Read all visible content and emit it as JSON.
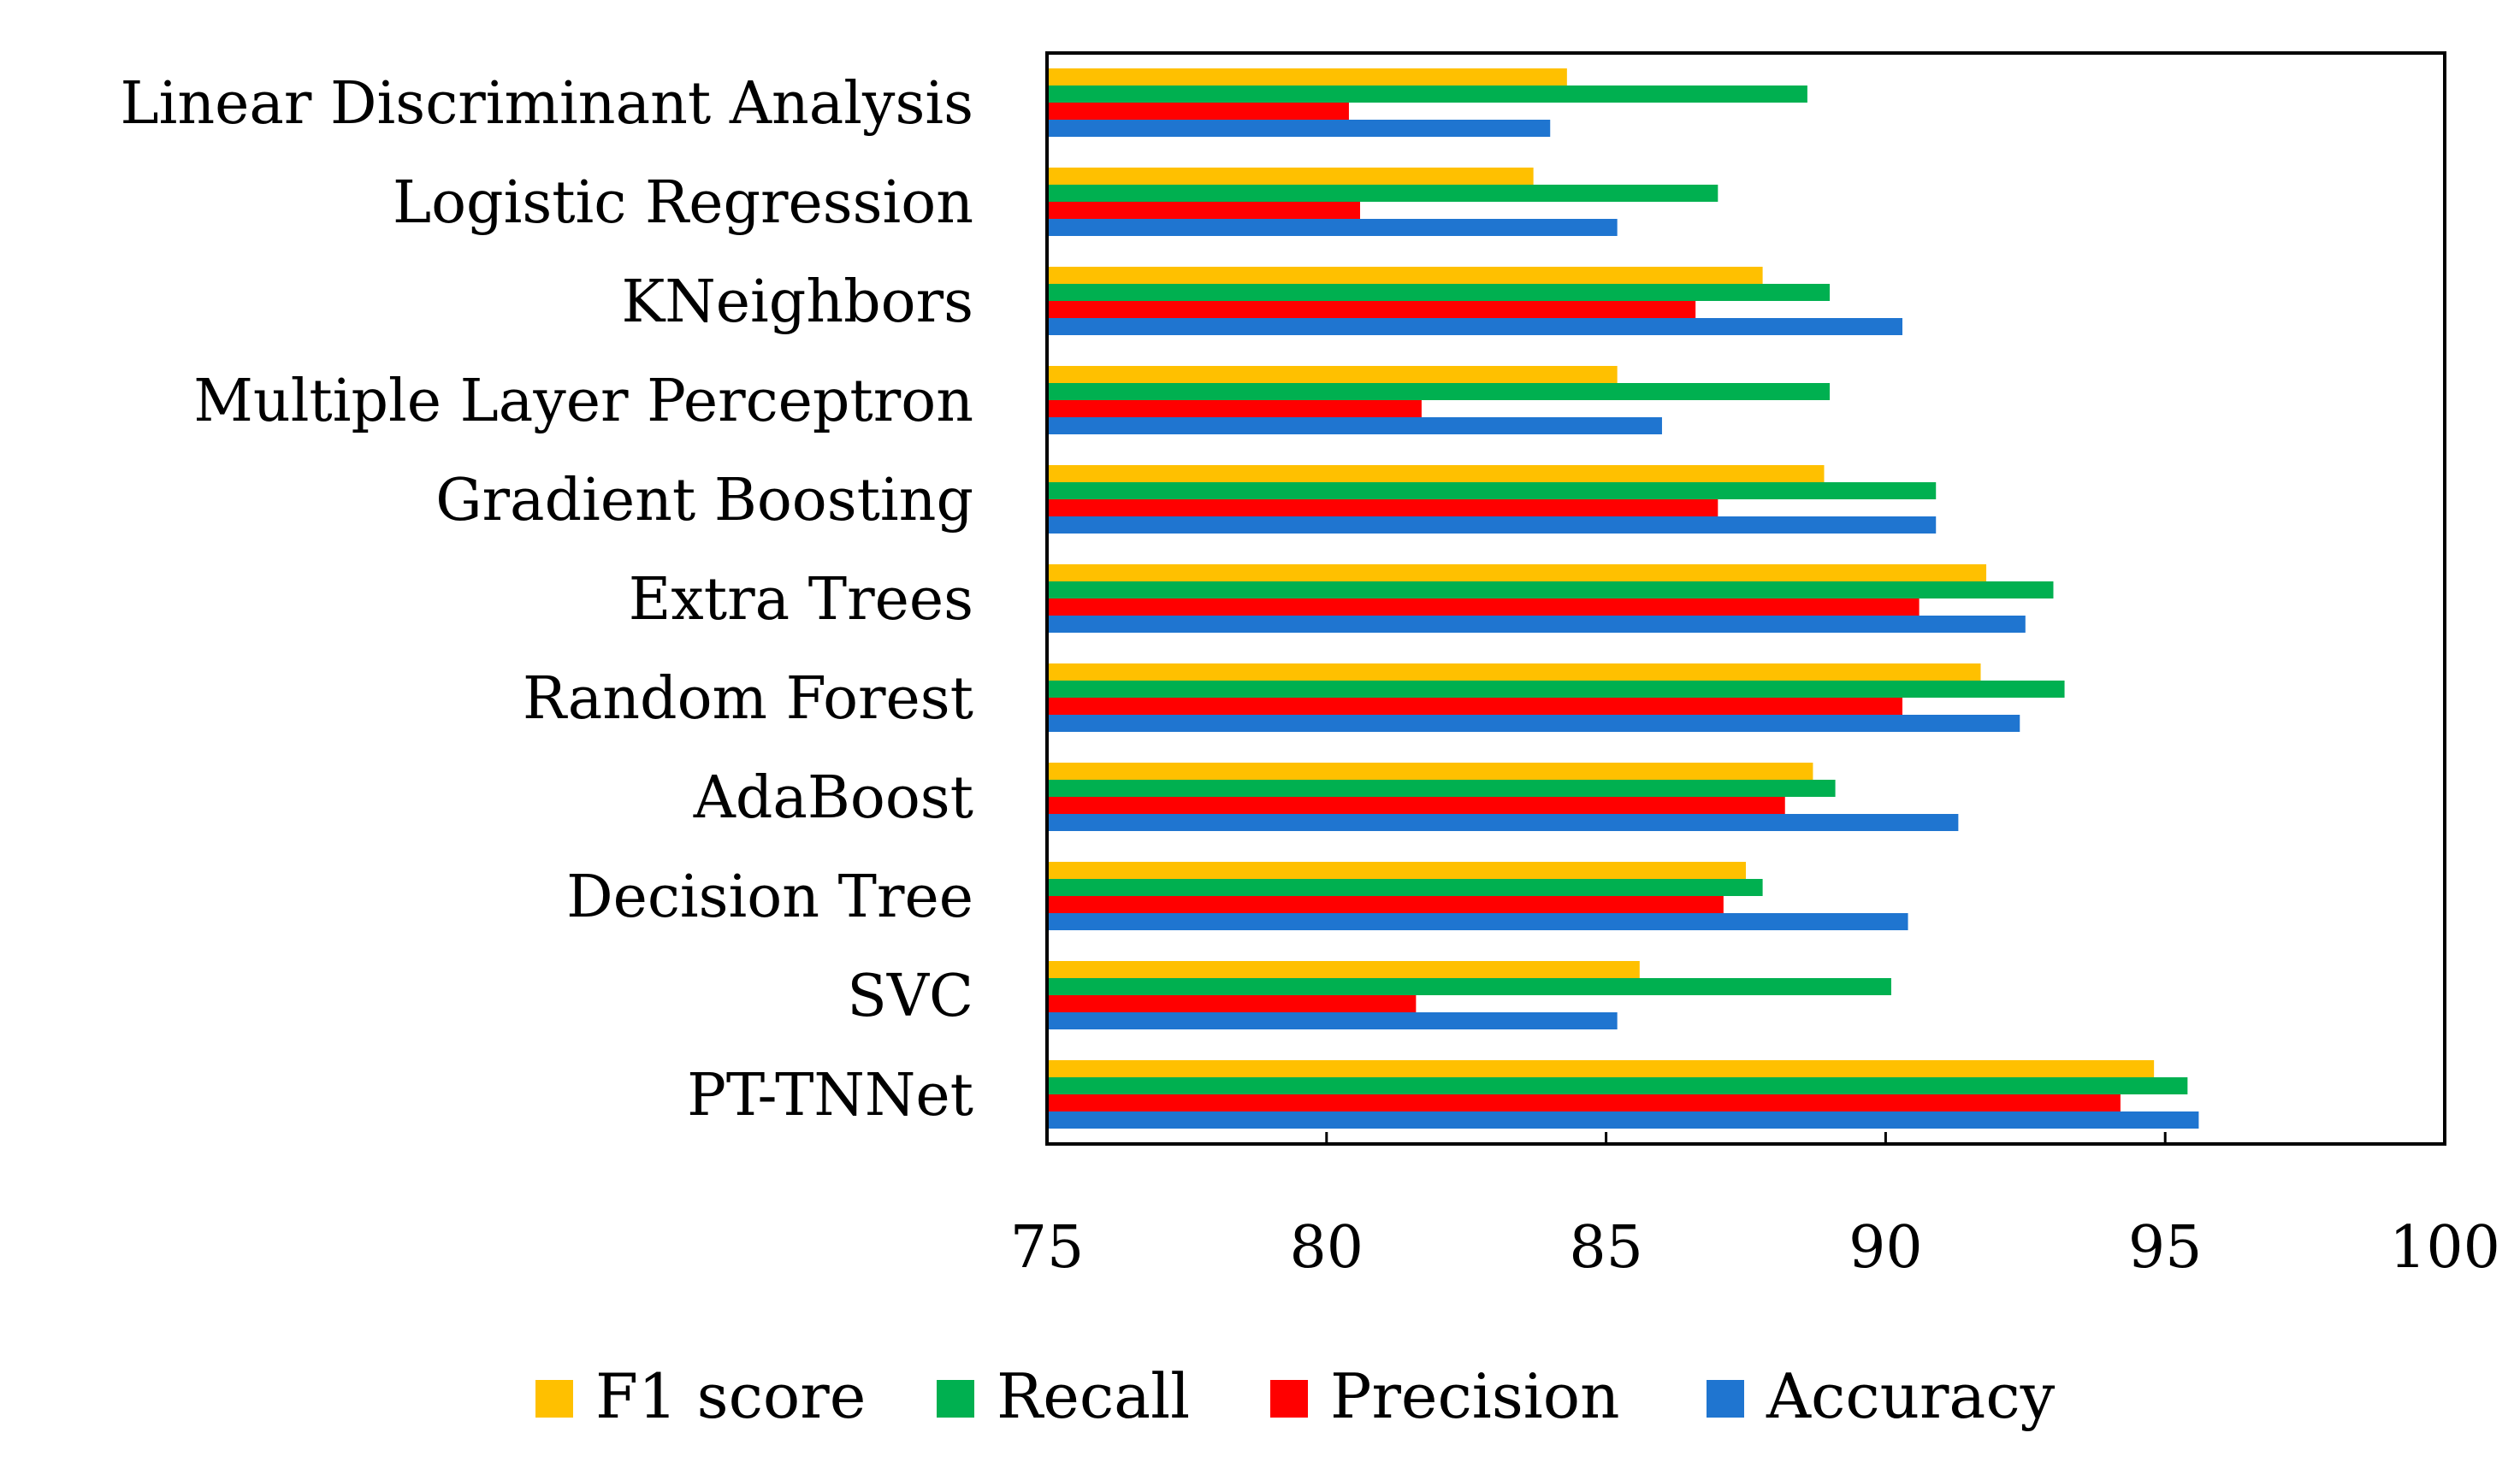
{
  "chart_data": {
    "type": "bar",
    "orientation": "horizontal",
    "title": "",
    "xlabel": "",
    "ylabel": "",
    "xlim": [
      75,
      100
    ],
    "xticks": [
      75,
      80,
      85,
      90,
      95,
      100
    ],
    "grid": false,
    "legend_position": "bottom",
    "categories": [
      "Linear Discriminant Analysis",
      "Logistic Regression",
      "KNeighbors",
      "Multiple Layer Perceptron",
      "Gradient Boosting",
      "Extra Trees",
      "Random Forest",
      "AdaBoost",
      "Decision Tree",
      "SVC",
      "PT-TNNet"
    ],
    "series": [
      {
        "name": "F1 score",
        "color": "#FFC000",
        "values": [
          84.3,
          83.7,
          87.8,
          85.2,
          88.9,
          91.8,
          91.7,
          88.7,
          87.5,
          85.6,
          94.8
        ]
      },
      {
        "name": "Recall",
        "color": "#00B050",
        "values": [
          88.6,
          87.0,
          89.0,
          89.0,
          90.9,
          93.0,
          93.2,
          89.1,
          87.8,
          90.1,
          95.4
        ]
      },
      {
        "name": "Precision",
        "color": "#FF0000",
        "values": [
          80.4,
          80.6,
          86.6,
          81.7,
          87.0,
          90.6,
          90.3,
          88.2,
          87.1,
          81.6,
          94.2
        ]
      },
      {
        "name": "Accuracy",
        "color": "#1F75D0",
        "values": [
          84.0,
          85.2,
          90.3,
          86.0,
          90.9,
          92.5,
          92.4,
          91.3,
          90.4,
          85.2,
          95.6
        ]
      }
    ]
  }
}
